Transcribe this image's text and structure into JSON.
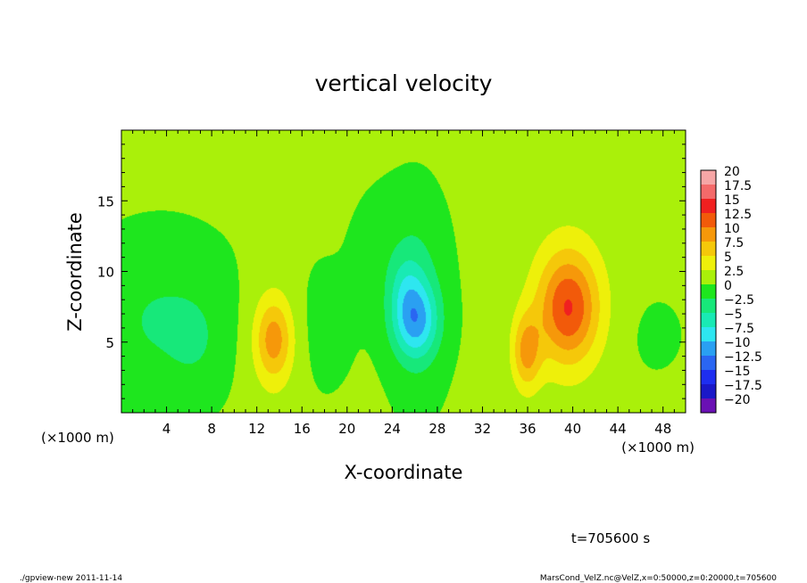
{
  "chart_data": {
    "type": "heatmap",
    "title": "vertical velocity",
    "xlabel": "X-coordinate",
    "ylabel": "Z-coordinate",
    "x_unit_left": "(×1000 m)",
    "x_unit_right": "(×1000 m)",
    "xlim": [
      0,
      50
    ],
    "ylim": [
      0,
      20
    ],
    "xticks": [
      4,
      8,
      12,
      16,
      20,
      24,
      28,
      32,
      36,
      40,
      44,
      48
    ],
    "yticks": [
      5,
      10,
      15
    ],
    "colorbar": {
      "labels": [
        "20",
        "17.5",
        "15",
        "12.5",
        "10",
        "7.5",
        "5",
        "2.5",
        "0",
        "−2.5",
        "−5",
        "−7.5",
        "−10",
        "−12.5",
        "−15",
        "−17.5",
        "−20"
      ],
      "colors": [
        "#f6a6a6",
        "#f46a6a",
        "#f02020",
        "#f25a0a",
        "#f6980a",
        "#f5c80a",
        "#eef00a",
        "#aaf00a",
        "#1ee61e",
        "#17e87a",
        "#19eab4",
        "#2ee6f0",
        "#2aa0f2",
        "#2a66f2",
        "#1e2ef0",
        "#1a18c8",
        "#6a10b4"
      ]
    },
    "background_value": 1.5,
    "features": [
      {
        "x": 13.5,
        "z": 5.2,
        "sx": 1.1,
        "sz": 1.9,
        "amp": 6.5
      },
      {
        "x": 13.5,
        "z": 5.0,
        "sx": 1.7,
        "sz": 3.6,
        "amp": 2.5
      },
      {
        "x": 26.0,
        "z": 6.5,
        "sx": 1.4,
        "sz": 1.8,
        "amp": -8.5
      },
      {
        "x": 26.2,
        "z": 8.0,
        "sx": 1.6,
        "sz": 4.0,
        "amp": -4.0
      },
      {
        "x": 25.2,
        "z": 9.0,
        "sx": 1.0,
        "sz": 1.5,
        "amp": -2.5
      },
      {
        "x": 35.9,
        "z": 4.3,
        "sx": 0.9,
        "sz": 1.9,
        "amp": 7.5
      },
      {
        "x": 39.6,
        "z": 7.4,
        "sx": 1.8,
        "sz": 2.6,
        "amp": 9.0
      },
      {
        "x": 39.6,
        "z": 7.8,
        "sx": 2.7,
        "sz": 4.2,
        "amp": 3.5
      },
      {
        "x": 3.5,
        "z": 6.5,
        "sx": 4.0,
        "sz": 3.5,
        "amp": -3.0
      },
      {
        "x": 6.5,
        "z": 5.0,
        "sx": 1.5,
        "sz": 2.0,
        "amp": -1.5
      },
      {
        "x": 17.5,
        "z": 6.0,
        "sx": 2.0,
        "sz": 3.0,
        "amp": -1.0
      },
      {
        "x": 47.0,
        "z": 5.5,
        "sx": 2.0,
        "sz": 2.0,
        "amp": -0.6
      },
      {
        "x": 23.5,
        "z": 11.0,
        "sx": 2.0,
        "sz": 3.0,
        "amp": -1.2
      }
    ]
  },
  "footer": {
    "time_label": "t=705600 s",
    "left_note": "./gpview-new   2011-11-14",
    "right_note": "MarsCond_VelZ.nc@VelZ,x=0:50000,z=0:20000,t=705600"
  }
}
